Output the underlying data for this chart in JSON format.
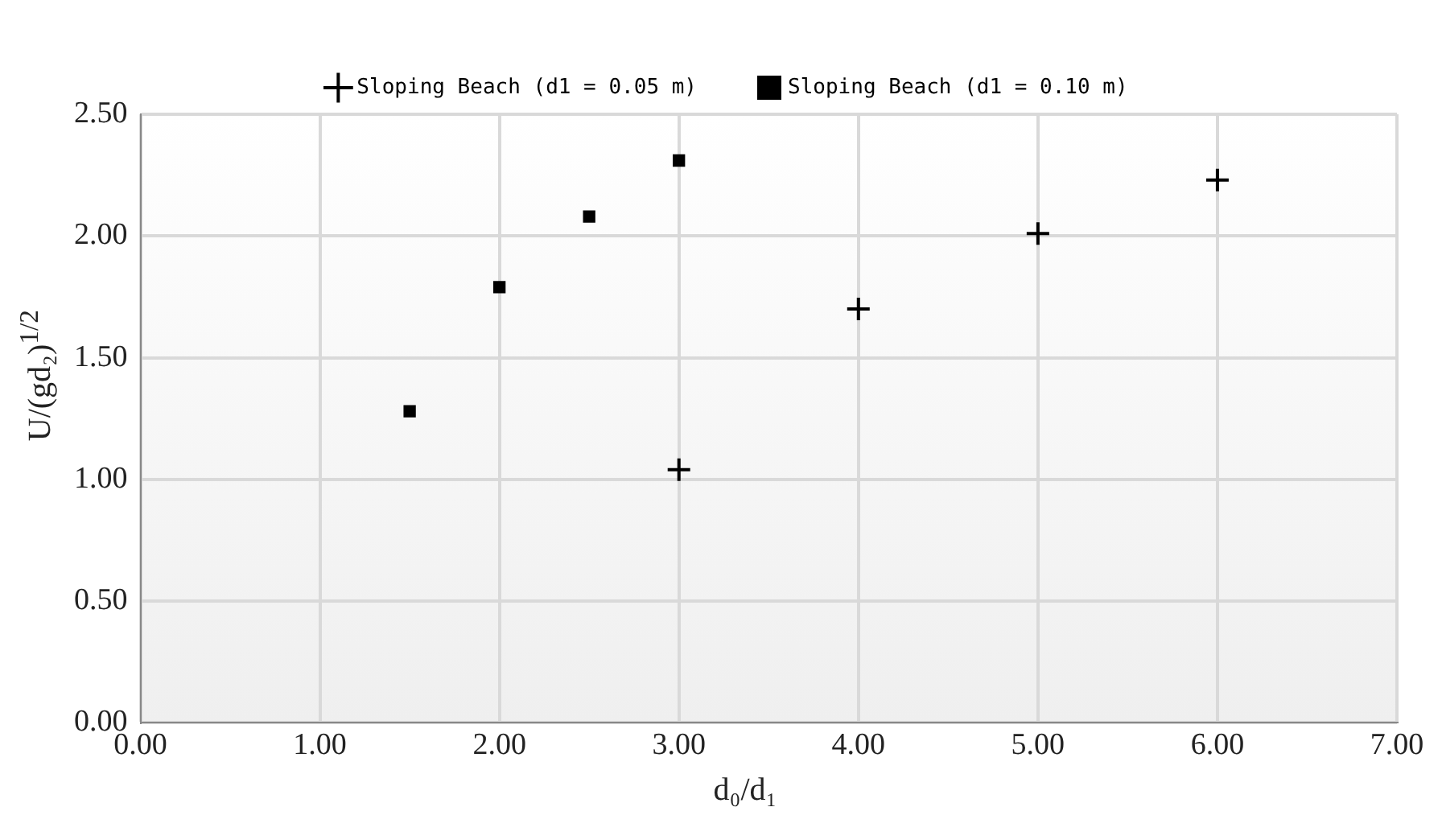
{
  "chart_data": {
    "type": "scatter",
    "xlabel": "d₀/d₁",
    "ylabel": "U/(gd₂)$^{1/2}$",
    "series": [
      {
        "name": "Sloping Beach (d1 = 0.05 m)",
        "color": "#000000",
        "marker": "cross",
        "x": [
          3.0,
          4.0,
          5.0,
          6.0
        ],
        "values": [
          1.04,
          1.7,
          2.01,
          2.23
        ]
      },
      {
        "name": "Sloping Beach (d1 = 0.10 m)",
        "color": "#000000",
        "marker": "square",
        "x": [
          1.5,
          2.0,
          2.5,
          3.0
        ],
        "values": [
          1.28,
          1.79,
          2.08,
          2.31
        ]
      }
    ],
    "xlim": [
      0,
      7
    ],
    "xticks": [
      {
        "value": 0,
        "label": "0.00"
      },
      {
        "value": 1,
        "label": "1.00"
      },
      {
        "value": 2,
        "label": "2.00"
      },
      {
        "value": 3,
        "label": "3.00"
      },
      {
        "value": 4,
        "label": "4.00"
      },
      {
        "value": 5,
        "label": "5.00"
      },
      {
        "value": 6,
        "label": "6.00"
      },
      {
        "value": 7,
        "label": "7.00"
      }
    ],
    "ylim": [
      0,
      2.5
    ],
    "yticks": [
      {
        "value": 0,
        "label": "0.00"
      },
      {
        "value": 0.5,
        "label": "0.50"
      },
      {
        "value": 1,
        "label": "1.00"
      },
      {
        "value": 1.5,
        "label": "1.50"
      },
      {
        "value": 2,
        "label": "2.00"
      },
      {
        "value": 2.5,
        "label": "2.50"
      }
    ],
    "grid": true,
    "legend": "top"
  }
}
